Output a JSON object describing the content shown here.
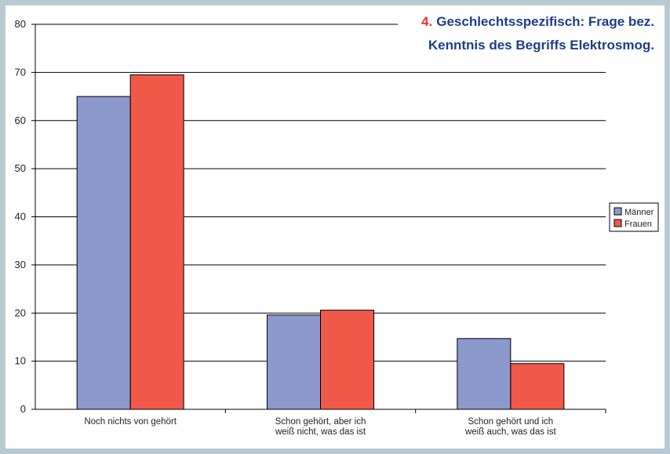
{
  "chart_data": {
    "type": "bar",
    "title_number": "4.",
    "title_line1": "Geschlechtsspezifisch: Frage bez.",
    "title_line2": "Kenntnis des Begriffs Elektrosmog.",
    "categories": [
      [
        "Noch nichts von gehört"
      ],
      [
        "Schon gehört, aber ich",
        "weiß nicht, was das ist"
      ],
      [
        "Schon gehört und ich",
        "weiß auch, was das ist"
      ]
    ],
    "series": [
      {
        "name": "Männer",
        "values": [
          65,
          19.6,
          14.7
        ],
        "color": "#8c99cd"
      },
      {
        "name": "Frauen",
        "values": [
          69.5,
          20.6,
          9.5
        ],
        "color": "#f0594a"
      }
    ],
    "ylim": [
      0,
      80
    ],
    "yticks": [
      0,
      10,
      20,
      30,
      40,
      50,
      60,
      70,
      80
    ],
    "grid": true,
    "legend_position": "right",
    "title_color": "#1f3d86",
    "number_color": "#e8312a"
  }
}
